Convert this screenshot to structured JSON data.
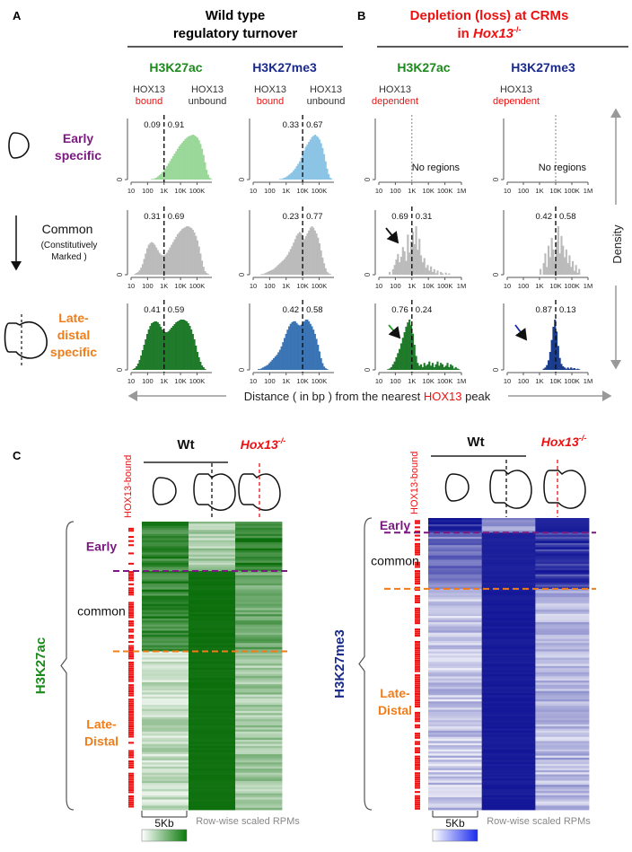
{
  "panel_labels": {
    "a": "A",
    "b": "B",
    "c": "C"
  },
  "colors": {
    "green": "#1a8a1a",
    "green_light": "#9ad89a",
    "green_dark": "#1f7a2a",
    "blue": "#1a2a8a",
    "blue_light": "#8cc4e6",
    "blue_mid": "#3a74b4",
    "blue_dark": "#1a3c8c",
    "grey": "#bbbbbb",
    "red": "#ee1111",
    "purple": "#7a1a80",
    "orange": "#f07d1a",
    "gridline": "#999999"
  },
  "header_a": {
    "title_line1": "Wild type",
    "title_line2": "regulatory  turnover"
  },
  "header_b": {
    "title_line1": "Depletion (loss) at CRMs",
    "title_line2_pre": "in ",
    "title_line2_gene": "Hox13",
    "title_line2_sup": "-/-"
  },
  "columns": [
    {
      "mark": "H3K27ac",
      "left_label1": "HOX13",
      "left_label2": "bound",
      "right_label1": "HOX13",
      "right_label2": "unbound"
    },
    {
      "mark": "H3K27me3",
      "left_label1": "HOX13",
      "left_label2": "bound",
      "right_label1": "HOX13",
      "right_label2": "unbound"
    },
    {
      "mark": "H3K27ac",
      "left_label1": "HOX13",
      "left_label2": "dependent",
      "right_label1": "",
      "right_label2": ""
    },
    {
      "mark": "H3K27me3",
      "left_label1": "HOX13",
      "left_label2": "dependent",
      "right_label1": "",
      "right_label2": ""
    }
  ],
  "rows": [
    {
      "label1": "Early",
      "label2": "specific",
      "label3": ""
    },
    {
      "label1": "Common",
      "label2": "(Constitutively",
      "label3": "Marked )"
    },
    {
      "label1": "Late-",
      "label2": "distal",
      "label3": "specific"
    }
  ],
  "density_label": "Density",
  "x_axis_title": {
    "pre": "Distance ( in bp ) from the nearest ",
    "highlight": "HOX13",
    "post": " peak"
  },
  "chart_data": [
    {
      "type": "bar",
      "id": "a-early-ac",
      "fill": "#9ad89a",
      "x_ticks": [
        "10",
        "100",
        "1K",
        "10K",
        "100K"
      ],
      "y_ticks": [
        "0"
      ],
      "xlim_log10": [
        1,
        5.9
      ],
      "threshold": "1K",
      "left_fraction": "0.09",
      "right_fraction": "0.91",
      "no_regions": "",
      "values": [
        0,
        0,
        0,
        0,
        0,
        0,
        0,
        0,
        0,
        0,
        0,
        0,
        0,
        1,
        1,
        2,
        3,
        5,
        7,
        9,
        12,
        15,
        18,
        22,
        26,
        30,
        34,
        38,
        42,
        46,
        50,
        54,
        57,
        60,
        63,
        66,
        68,
        70,
        71,
        72,
        73,
        72,
        70,
        68,
        64,
        58,
        50,
        40,
        28,
        16,
        8,
        3,
        1
      ]
    },
    {
      "type": "bar",
      "id": "a-early-me3",
      "fill": "#8cc4e6",
      "x_ticks": [
        "10",
        "100",
        "1K",
        "10K",
        "100K"
      ],
      "y_ticks": [
        "0"
      ],
      "xlim_log10": [
        1,
        5.9
      ],
      "threshold": "10K",
      "left_fraction": "0.33",
      "right_fraction": "0.67",
      "no_regions": "",
      "values": [
        0,
        0,
        0,
        0,
        0,
        0,
        0,
        0,
        0,
        0,
        0,
        0,
        0,
        0,
        0,
        0,
        0,
        1,
        1,
        2,
        3,
        4,
        6,
        8,
        10,
        12,
        15,
        18,
        22,
        26,
        30,
        36,
        42,
        48,
        54,
        58,
        62,
        66,
        70,
        72,
        74,
        72,
        70,
        66,
        60,
        52,
        42,
        30,
        18,
        9,
        3,
        1,
        0
      ]
    },
    {
      "type": "bar",
      "id": "b-early-ac",
      "fill": "#bbbbbb",
      "x_ticks": [
        "10",
        "100",
        "1K",
        "10K",
        "100K",
        "1M"
      ],
      "y_ticks": [
        "0"
      ],
      "xlim_log10": [
        1,
        6
      ],
      "threshold": "1K",
      "left_fraction": "",
      "right_fraction": "",
      "no_regions": "No regions",
      "values": []
    },
    {
      "type": "bar",
      "id": "b-early-me3",
      "fill": "#bbbbbb",
      "x_ticks": [
        "10",
        "100",
        "1K",
        "10K",
        "100K",
        "1M"
      ],
      "y_ticks": [
        "0"
      ],
      "xlim_log10": [
        1,
        6
      ],
      "threshold": "10K",
      "left_fraction": "",
      "right_fraction": "",
      "no_regions": "No regions",
      "values": []
    },
    {
      "type": "bar",
      "id": "a-common-ac",
      "fill": "#bbbbbb",
      "x_ticks": [
        "10",
        "100",
        "1K",
        "10K",
        "100K"
      ],
      "y_ticks": [
        "0"
      ],
      "xlim_log10": [
        1,
        5.9
      ],
      "threshold": "1K",
      "left_fraction": "0.31",
      "right_fraction": "0.69",
      "no_regions": "",
      "values": [
        0,
        0,
        1,
        2,
        3,
        5,
        8,
        12,
        18,
        24,
        30,
        34,
        36,
        37,
        36,
        34,
        31,
        28,
        25,
        23,
        22,
        22,
        23,
        25,
        28,
        31,
        34,
        37,
        40,
        43,
        46,
        48,
        50,
        52,
        53,
        54,
        55,
        55,
        54,
        53,
        51,
        48,
        44,
        39,
        32,
        24,
        16,
        9,
        4,
        2,
        1,
        0,
        0
      ]
    },
    {
      "type": "bar",
      "id": "a-common-me3",
      "fill": "#bbbbbb",
      "x_ticks": [
        "10",
        "100",
        "1K",
        "10K",
        "100K"
      ],
      "y_ticks": [
        "0"
      ],
      "xlim_log10": [
        1,
        5.9
      ],
      "threshold": "10K",
      "left_fraction": "0.23",
      "right_fraction": "0.77",
      "no_regions": "",
      "values": [
        0,
        0,
        0,
        0,
        0,
        1,
        1,
        2,
        3,
        4,
        5,
        6,
        7,
        8,
        10,
        12,
        14,
        16,
        18,
        20,
        22,
        25,
        28,
        32,
        36,
        40,
        45,
        50,
        55,
        58,
        60,
        58,
        52,
        50,
        54,
        58,
        62,
        66,
        68,
        66,
        62,
        58,
        52,
        44,
        34,
        24,
        16,
        9,
        4,
        2,
        1,
        0,
        0
      ]
    },
    {
      "type": "bar",
      "id": "b-common-ac",
      "fill": "#bbbbbb",
      "x_ticks": [
        "10",
        "100",
        "1K",
        "10K",
        "100K",
        "1M"
      ],
      "y_ticks": [
        "0"
      ],
      "xlim_log10": [
        1,
        6
      ],
      "threshold": "1K",
      "left_fraction": "0.69",
      "right_fraction": "0.31",
      "no_regions": "",
      "values": [
        0,
        0,
        0,
        0,
        0,
        0,
        4,
        0,
        8,
        14,
        22,
        30,
        18,
        26,
        40,
        34,
        20,
        58,
        32,
        48,
        62,
        44,
        70,
        36,
        52,
        28,
        18,
        24,
        10,
        14,
        6,
        12,
        4,
        8,
        2,
        6,
        0,
        4,
        2,
        0,
        3,
        0,
        2,
        0,
        0,
        0,
        0,
        0,
        0,
        0
      ]
    },
    {
      "type": "bar",
      "id": "b-common-me3",
      "fill": "#bbbbbb",
      "x_ticks": [
        "10",
        "100",
        "1K",
        "10K",
        "100K",
        "1M"
      ],
      "y_ticks": [
        "0"
      ],
      "xlim_log10": [
        1,
        6
      ],
      "threshold": "10K",
      "left_fraction": "0.42",
      "right_fraction": "0.58",
      "no_regions": "",
      "values": [
        0,
        0,
        0,
        0,
        0,
        0,
        0,
        0,
        0,
        0,
        0,
        0,
        0,
        0,
        0,
        0,
        0,
        0,
        0,
        0,
        6,
        0,
        12,
        22,
        8,
        30,
        18,
        38,
        26,
        14,
        34,
        50,
        22,
        40,
        30,
        18,
        26,
        12,
        20,
        8,
        14,
        4,
        10,
        2,
        6,
        0,
        0,
        0,
        0,
        0
      ]
    },
    {
      "type": "bar",
      "id": "a-late-ac",
      "fill": "#1f7a2a",
      "x_ticks": [
        "10",
        "100",
        "1K",
        "10K",
        "100K"
      ],
      "y_ticks": [
        "0"
      ],
      "xlim_log10": [
        1,
        5.9
      ],
      "threshold": "1K",
      "left_fraction": "0.41",
      "right_fraction": "0.59",
      "no_regions": "",
      "values": [
        0,
        1,
        2,
        4,
        7,
        11,
        16,
        22,
        28,
        34,
        40,
        45,
        49,
        52,
        53,
        54,
        54,
        53,
        51,
        48,
        45,
        43,
        42,
        42,
        43,
        45,
        47,
        49,
        51,
        53,
        54,
        55,
        56,
        56,
        56,
        55,
        54,
        52,
        49,
        45,
        40,
        34,
        27,
        20,
        14,
        9,
        5,
        3,
        1,
        0,
        0,
        0,
        0
      ]
    },
    {
      "type": "bar",
      "id": "a-late-me3",
      "fill": "#3a74b4",
      "x_ticks": [
        "10",
        "100",
        "1K",
        "10K",
        "100K"
      ],
      "y_ticks": [
        "0"
      ],
      "xlim_log10": [
        1,
        5.9
      ],
      "threshold": "10K",
      "left_fraction": "0.42",
      "right_fraction": "0.58",
      "no_regions": "",
      "values": [
        0,
        0,
        0,
        1,
        1,
        2,
        3,
        4,
        5,
        6,
        8,
        10,
        12,
        14,
        16,
        18,
        21,
        24,
        28,
        33,
        38,
        43,
        48,
        52,
        55,
        57,
        58,
        58,
        56,
        54,
        53,
        54,
        56,
        58,
        60,
        60,
        58,
        55,
        52,
        48,
        43,
        37,
        30,
        22,
        14,
        8,
        4,
        2,
        1,
        0,
        0,
        0,
        0
      ]
    },
    {
      "type": "bar",
      "id": "b-late-ac",
      "fill": "#1f7a2a",
      "x_ticks": [
        "10",
        "100",
        "1K",
        "10K",
        "100K",
        "1M"
      ],
      "y_ticks": [
        "0"
      ],
      "xlim_log10": [
        1,
        6
      ],
      "threshold": "1K",
      "left_fraction": "0.76",
      "right_fraction": "0.24",
      "no_regions": "",
      "values": [
        0,
        0,
        0,
        0,
        0,
        1,
        2,
        4,
        8,
        12,
        18,
        24,
        30,
        38,
        46,
        54,
        62,
        68,
        72,
        64,
        52,
        36,
        20,
        10,
        6,
        8,
        4,
        10,
        6,
        8,
        12,
        6,
        10,
        4,
        8,
        12,
        6,
        10,
        8,
        4,
        6,
        10,
        4,
        8,
        6,
        2,
        4,
        2,
        1,
        0
      ]
    },
    {
      "type": "bar",
      "id": "b-late-me3",
      "fill": "#1a3c8c",
      "x_ticks": [
        "10",
        "100",
        "1K",
        "10K",
        "100K",
        "1M"
      ],
      "y_ticks": [
        "0"
      ],
      "xlim_log10": [
        1,
        6
      ],
      "threshold": "10K",
      "left_fraction": "0.87",
      "right_fraction": "0.13",
      "no_regions": "",
      "values": [
        0,
        0,
        0,
        0,
        0,
        0,
        0,
        0,
        0,
        0,
        0,
        0,
        0,
        0,
        0,
        0,
        0,
        0,
        0,
        0,
        0,
        0,
        2,
        4,
        8,
        16,
        30,
        50,
        72,
        84,
        64,
        40,
        20,
        10,
        6,
        4,
        2,
        4,
        2,
        4,
        2,
        3,
        1,
        2,
        1,
        0,
        0,
        0,
        0,
        0
      ]
    },
    {
      "type": "heatmap",
      "id": "c-h3k27ac",
      "title": "H3K27ac",
      "row_label": "HOX13-bound",
      "group_label": "Wt",
      "mutant_gene": "Hox13",
      "mutant_sup": "-/-",
      "sections": [
        "Early",
        "common",
        "Late-Distal"
      ],
      "section_fractions": [
        0.17,
        0.45,
        1.0
      ],
      "column_means": [
        [
          0.82,
          0.35,
          0.85
        ],
        [
          0.82,
          0.98,
          0.62
        ],
        [
          0.25,
          0.98,
          0.38
        ]
      ],
      "scale_bar": "5Kb",
      "legend": "Row-wise scaled RPMs"
    },
    {
      "type": "heatmap",
      "id": "c-h3k27me3",
      "title": "H3K27me3",
      "row_label": "HOX13-bound",
      "group_label": "Wt",
      "mutant_gene": "Hox13",
      "mutant_sup": "-/-",
      "sections": [
        "Early",
        "common",
        "Late-Distal"
      ],
      "section_fractions": [
        0.05,
        0.24,
        1.0
      ],
      "column_means": [
        [
          0.9,
          0.4,
          0.95
        ],
        [
          0.6,
          0.95,
          0.85
        ],
        [
          0.25,
          0.97,
          0.3
        ]
      ],
      "scale_bar": "5Kb",
      "legend": "Row-wise scaled RPMs"
    }
  ]
}
